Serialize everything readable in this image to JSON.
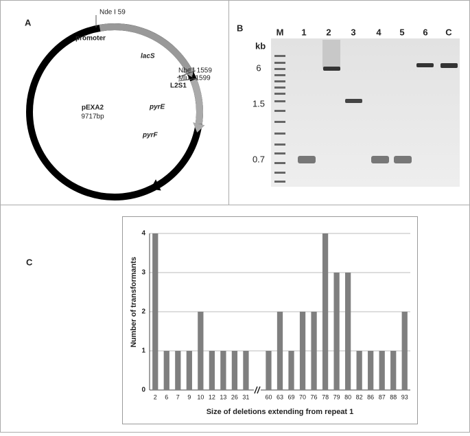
{
  "panel_a": {
    "label": "A",
    "labels": [
      "Nde I 59",
      "promoter",
      "lacS",
      "Nhe I 1559",
      "Mlu I 1599",
      "L2S1",
      "pyrE",
      "pyrF"
    ],
    "plasmid_name": "pEXA2",
    "plasmid_size": "9717bp"
  },
  "panel_b": {
    "label": "B",
    "lanes": [
      "M",
      "1",
      "2",
      "3",
      "4",
      "5",
      "6",
      "C"
    ],
    "size_unit": "kb",
    "size_markers": [
      "6",
      "1.5",
      "0.7"
    ]
  },
  "panel_c_label": "C",
  "chart_data": {
    "type": "bar",
    "y_label": "Number of transformants",
    "x_label": "Size of deletions extending from repeat 1",
    "categories": [
      "2",
      "6",
      "7",
      "9",
      "10",
      "12",
      "13",
      "26",
      "31",
      null,
      "60",
      "63",
      "69",
      "70",
      "76",
      "78",
      "79",
      "80",
      "82",
      "86",
      "87",
      "88",
      "93"
    ],
    "values": [
      4,
      1,
      1,
      1,
      2,
      1,
      1,
      1,
      1,
      null,
      1,
      2,
      1,
      2,
      2,
      4,
      3,
      3,
      1,
      1,
      1,
      1,
      2
    ],
    "color": "#7f7f7f",
    "ylim": [
      0,
      4
    ],
    "yticks": [
      0,
      1,
      2,
      3,
      4
    ],
    "grid": true
  }
}
